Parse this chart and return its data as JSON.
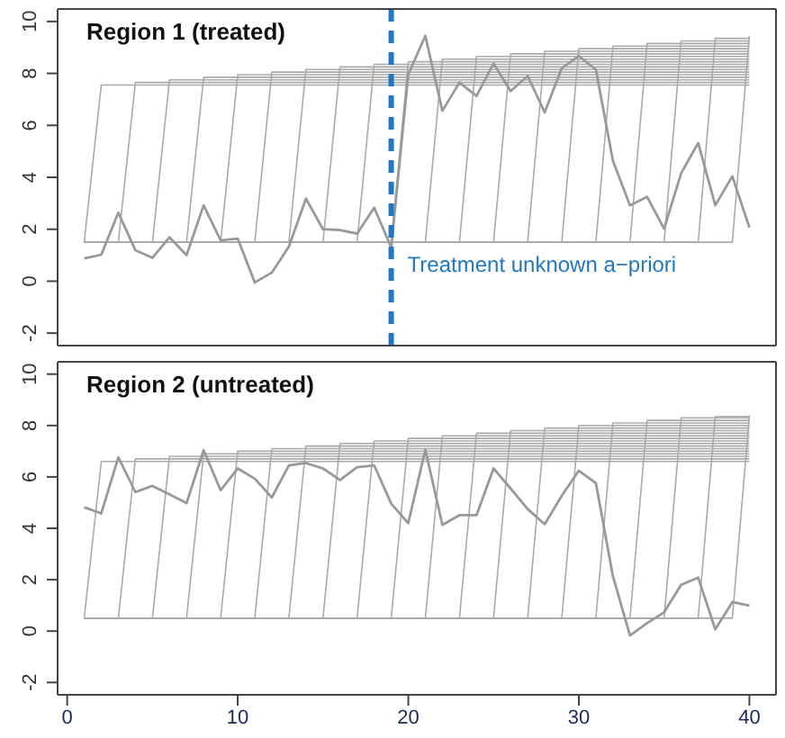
{
  "chart_data": [
    {
      "type": "line",
      "title": "Region 1 (treated)",
      "xlim": [
        -0.56,
        41.56
      ],
      "ylim": [
        -2.48,
        10.48
      ],
      "xticks": [
        0,
        10,
        20,
        30,
        40
      ],
      "yticks": [
        -2,
        0,
        2,
        4,
        6,
        8,
        10
      ],
      "tick_labels": "y",
      "ref_lines": [
        {
          "axis": "x",
          "value": 19,
          "label": "Treatment unknown a−priori",
          "color": "#1f78c1",
          "line_style": "dashed"
        }
      ],
      "series": [
        {
          "color": "#aaaaaa",
          "x": [
            1,
            2,
            40
          ],
          "values": [
            1.5,
            7.55,
            7.55
          ]
        },
        {
          "color": "#aaaaaa",
          "x": [
            1,
            3,
            4,
            40
          ],
          "values": [
            1.5,
            1.5,
            7.65,
            7.65
          ]
        },
        {
          "color": "#aaaaaa",
          "x": [
            1,
            5,
            6,
            40
          ],
          "values": [
            1.5,
            1.5,
            7.75,
            7.75
          ]
        },
        {
          "color": "#aaaaaa",
          "x": [
            1,
            7,
            8,
            40
          ],
          "values": [
            1.5,
            1.5,
            7.85,
            7.85
          ]
        },
        {
          "color": "#aaaaaa",
          "x": [
            1,
            9,
            10,
            40
          ],
          "values": [
            1.5,
            1.5,
            7.95,
            7.95
          ]
        },
        {
          "color": "#aaaaaa",
          "x": [
            1,
            11,
            12,
            40
          ],
          "values": [
            1.5,
            1.5,
            8.05,
            8.05
          ]
        },
        {
          "color": "#aaaaaa",
          "x": [
            1,
            13,
            14,
            40
          ],
          "values": [
            1.5,
            1.5,
            8.15,
            8.15
          ]
        },
        {
          "color": "#aaaaaa",
          "x": [
            1,
            15,
            16,
            40
          ],
          "values": [
            1.5,
            1.5,
            8.25,
            8.25
          ]
        },
        {
          "color": "#aaaaaa",
          "x": [
            1,
            17,
            18,
            40
          ],
          "values": [
            1.5,
            1.5,
            8.35,
            8.35
          ]
        },
        {
          "color": "#aaaaaa",
          "x": [
            1,
            19,
            20,
            40
          ],
          "values": [
            1.5,
            1.5,
            8.45,
            8.45
          ]
        },
        {
          "color": "#aaaaaa",
          "x": [
            1,
            21,
            22,
            40
          ],
          "values": [
            1.5,
            1.5,
            8.55,
            8.55
          ]
        },
        {
          "color": "#aaaaaa",
          "x": [
            1,
            23,
            24,
            40
          ],
          "values": [
            1.5,
            1.5,
            8.65,
            8.65
          ]
        },
        {
          "color": "#aaaaaa",
          "x": [
            1,
            25,
            26,
            40
          ],
          "values": [
            1.5,
            1.5,
            8.75,
            8.75
          ]
        },
        {
          "color": "#aaaaaa",
          "x": [
            1,
            27,
            28,
            40
          ],
          "values": [
            1.5,
            1.5,
            8.85,
            8.85
          ]
        },
        {
          "color": "#aaaaaa",
          "x": [
            1,
            29,
            30,
            40
          ],
          "values": [
            1.5,
            1.5,
            8.95,
            8.95
          ]
        },
        {
          "color": "#aaaaaa",
          "x": [
            1,
            31,
            32,
            40
          ],
          "values": [
            1.5,
            1.5,
            9.05,
            9.05
          ]
        },
        {
          "color": "#aaaaaa",
          "x": [
            1,
            33,
            34,
            40
          ],
          "values": [
            1.5,
            1.5,
            9.15,
            9.15
          ]
        },
        {
          "color": "#aaaaaa",
          "x": [
            1,
            35,
            36,
            40
          ],
          "values": [
            1.5,
            1.5,
            9.25,
            9.25
          ]
        },
        {
          "color": "#aaaaaa",
          "x": [
            1,
            37,
            38,
            40
          ],
          "values": [
            1.5,
            1.5,
            9.35,
            9.35
          ]
        },
        {
          "color": "#aaaaaa",
          "x": [
            1,
            39,
            40
          ],
          "values": [
            1.5,
            1.5,
            9.45
          ]
        },
        {
          "color": "#999999",
          "x": [
            1,
            2,
            3,
            4,
            5,
            6,
            7,
            8,
            9,
            10,
            11,
            12,
            13,
            14,
            15,
            16,
            17,
            18,
            19,
            20,
            21,
            22,
            23,
            24,
            25,
            26,
            27,
            28,
            29,
            30,
            31,
            32,
            33,
            34,
            35,
            36,
            37,
            38,
            39,
            40
          ],
          "values": [
            0.88,
            1.02,
            2.64,
            1.19,
            0.9,
            1.69,
            1.0,
            2.92,
            1.57,
            1.64,
            -0.05,
            0.33,
            1.33,
            3.18,
            2.0,
            1.97,
            1.83,
            2.83,
            1.3,
            7.96,
            9.45,
            6.56,
            7.65,
            7.13,
            8.38,
            7.32,
            7.9,
            6.5,
            8.2,
            8.67,
            8.15,
            4.63,
            2.92,
            3.25,
            2.02,
            4.16,
            5.32,
            2.92,
            4.04,
            2.07
          ]
        }
      ]
    },
    {
      "type": "line",
      "title": "Region 2 (untreated)",
      "xlim": [
        -0.56,
        41.56
      ],
      "ylim": [
        -2.48,
        10.48
      ],
      "xticks": [
        0,
        10,
        20,
        30,
        40
      ],
      "yticks": [
        -2,
        0,
        2,
        4,
        6,
        8,
        10
      ],
      "series": [
        {
          "color": "#aaaaaa",
          "x": [
            1,
            2,
            40
          ],
          "values": [
            0.5,
            6.6,
            6.6
          ]
        },
        {
          "color": "#aaaaaa",
          "x": [
            1,
            3,
            4,
            40
          ],
          "values": [
            0.5,
            0.5,
            6.7,
            6.7
          ]
        },
        {
          "color": "#aaaaaa",
          "x": [
            1,
            5,
            6,
            40
          ],
          "values": [
            0.5,
            0.5,
            6.8,
            6.8
          ]
        },
        {
          "color": "#aaaaaa",
          "x": [
            1,
            7,
            8,
            40
          ],
          "values": [
            0.5,
            0.5,
            6.9,
            6.9
          ]
        },
        {
          "color": "#aaaaaa",
          "x": [
            1,
            9,
            10,
            40
          ],
          "values": [
            0.5,
            0.5,
            7.0,
            7.0
          ]
        },
        {
          "color": "#aaaaaa",
          "x": [
            1,
            11,
            12,
            40
          ],
          "values": [
            0.5,
            0.5,
            7.1,
            7.1
          ]
        },
        {
          "color": "#aaaaaa",
          "x": [
            1,
            13,
            14,
            40
          ],
          "values": [
            0.5,
            0.5,
            7.2,
            7.2
          ]
        },
        {
          "color": "#aaaaaa",
          "x": [
            1,
            15,
            16,
            40
          ],
          "values": [
            0.5,
            0.5,
            7.3,
            7.3
          ]
        },
        {
          "color": "#aaaaaa",
          "x": [
            1,
            17,
            18,
            40
          ],
          "values": [
            0.5,
            0.5,
            7.4,
            7.4
          ]
        },
        {
          "color": "#aaaaaa",
          "x": [
            1,
            19,
            20,
            40
          ],
          "values": [
            0.5,
            0.5,
            7.5,
            7.5
          ]
        },
        {
          "color": "#aaaaaa",
          "x": [
            1,
            21,
            22,
            40
          ],
          "values": [
            0.5,
            0.5,
            7.6,
            7.6
          ]
        },
        {
          "color": "#aaaaaa",
          "x": [
            1,
            23,
            24,
            40
          ],
          "values": [
            0.5,
            0.5,
            7.7,
            7.7
          ]
        },
        {
          "color": "#aaaaaa",
          "x": [
            1,
            25,
            26,
            40
          ],
          "values": [
            0.5,
            0.5,
            7.8,
            7.8
          ]
        },
        {
          "color": "#aaaaaa",
          "x": [
            1,
            27,
            28,
            40
          ],
          "values": [
            0.5,
            0.5,
            7.9,
            7.9
          ]
        },
        {
          "color": "#aaaaaa",
          "x": [
            1,
            29,
            30,
            40
          ],
          "values": [
            0.5,
            0.5,
            8.0,
            8.0
          ]
        },
        {
          "color": "#aaaaaa",
          "x": [
            1,
            31,
            32,
            40
          ],
          "values": [
            0.5,
            0.5,
            8.1,
            8.1
          ]
        },
        {
          "color": "#aaaaaa",
          "x": [
            1,
            33,
            34,
            40
          ],
          "values": [
            0.5,
            0.5,
            8.2,
            8.2
          ]
        },
        {
          "color": "#aaaaaa",
          "x": [
            1,
            35,
            36,
            40
          ],
          "values": [
            0.5,
            0.5,
            8.3,
            8.3
          ]
        },
        {
          "color": "#aaaaaa",
          "x": [
            1,
            37,
            38,
            40
          ],
          "values": [
            0.5,
            0.5,
            8.35,
            8.35
          ]
        },
        {
          "color": "#aaaaaa",
          "x": [
            1,
            39,
            40
          ],
          "values": [
            0.5,
            0.5,
            8.4
          ]
        },
        {
          "color": "#999999",
          "x": [
            1,
            2,
            3,
            4,
            5,
            6,
            7,
            8,
            9,
            10,
            11,
            12,
            13,
            14,
            15,
            16,
            17,
            18,
            19,
            20,
            21,
            22,
            23,
            24,
            25,
            26,
            27,
            28,
            29,
            30,
            31,
            32,
            33,
            34,
            35,
            36,
            37,
            38,
            39,
            40
          ],
          "values": [
            4.82,
            4.58,
            6.76,
            5.41,
            5.65,
            5.32,
            4.98,
            7.04,
            5.48,
            6.33,
            5.93,
            5.2,
            6.45,
            6.54,
            6.33,
            5.88,
            6.38,
            6.45,
            4.96,
            4.2,
            7.06,
            4.13,
            4.51,
            4.51,
            6.33,
            5.55,
            4.75,
            4.16,
            5.27,
            6.24,
            5.76,
            2.13,
            -0.17,
            0.31,
            0.73,
            1.8,
            2.08,
            0.07,
            1.13,
            0.99
          ]
        }
      ]
    }
  ]
}
